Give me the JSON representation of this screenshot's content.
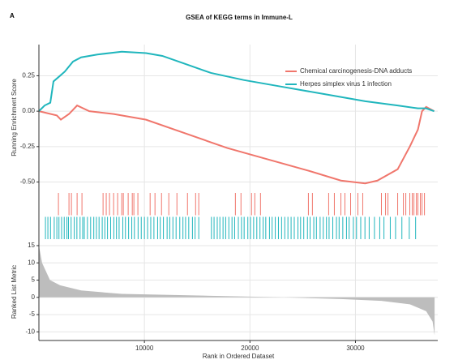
{
  "chart_data": {
    "type": "gsea",
    "panel_label": "A",
    "title": "GSEA of KEGG terms in Immune-L",
    "xlabel": "Rank in Ordered Dataset",
    "ylabel": "Running Enrichment Score",
    "xlim": [
      0,
      37800
    ],
    "xticks": [
      10000,
      20000,
      30000
    ],
    "ylim": [
      -0.56,
      0.47
    ],
    "yticks": [
      {
        "value": -0.5,
        "label": "-0.50"
      },
      -0.25,
      {
        "value": 0,
        "label": "0.00"
      },
      0.25
    ],
    "grid": true,
    "legend": "right",
    "series": [
      {
        "name": "Chemical carcinogenesis-DNA adducts",
        "color": "#f0766c",
        "x": [
          0,
          1700,
          2080,
          2850,
          3620,
          4770,
          7080,
          10150,
          14000,
          17850,
          21690,
          25540,
          28620,
          30920,
          32080,
          34000,
          35150,
          35920,
          36310,
          36700,
          37460
        ],
        "values": [
          0,
          -0.03,
          -0.06,
          -0.02,
          0.04,
          0,
          -0.02,
          -0.06,
          -0.16,
          -0.26,
          -0.34,
          -0.42,
          -0.49,
          -0.51,
          -0.49,
          -0.41,
          -0.25,
          -0.13,
          0,
          0.03,
          0
        ],
        "hits": [
          1850,
          2850,
          3080,
          3620,
          4080,
          6080,
          6380,
          6690,
          7080,
          7460,
          7850,
          8000,
          8460,
          8850,
          9000,
          9380,
          10540,
          11000,
          11620,
          12310,
          13080,
          14080,
          14850,
          15150,
          18620,
          19150,
          20150,
          20460,
          21000,
          25540,
          25920,
          27460,
          28000,
          28620,
          29000,
          29540,
          30230,
          30690,
          32460,
          32850,
          33080,
          34000,
          34540,
          34770,
          35150,
          35380,
          35540,
          35770,
          35920,
          36150,
          36310,
          36540
        ]
      },
      {
        "name": "Herpes simplex virus 1 infection",
        "color": "#20b6bd",
        "x": [
          0,
          540,
          1080,
          1380,
          1850,
          2460,
          3230,
          4000,
          5540,
          7850,
          10150,
          11700,
          14000,
          16300,
          19400,
          23230,
          27080,
          30920,
          34000,
          35920,
          36700,
          37460
        ],
        "values": [
          0,
          0.04,
          0.06,
          0.21,
          0.24,
          0.28,
          0.35,
          0.38,
          0.4,
          0.42,
          0.41,
          0.39,
          0.33,
          0.27,
          0.22,
          0.17,
          0.12,
          0.07,
          0.04,
          0.02,
          0.02,
          0
        ],
        "hits": [
          620,
          850,
          1100,
          1450,
          1700,
          1900,
          2150,
          2400,
          2650,
          2800,
          3050,
          3350,
          3600,
          3900,
          4150,
          4300,
          4600,
          4900,
          5200,
          5450,
          5700,
          6000,
          6250,
          6500,
          6800,
          7100,
          7350,
          7600,
          7950,
          8200,
          8500,
          8800,
          9050,
          9400,
          9700,
          10000,
          10300,
          10600,
          10900,
          11250,
          11500,
          11800,
          12150,
          12400,
          12700,
          13000,
          13350,
          13650,
          13900,
          14200,
          14550,
          14800,
          15150,
          16350,
          16600,
          16900,
          17150,
          17450,
          17700,
          18000,
          18300,
          18550,
          18900,
          19200,
          19450,
          19800,
          20050,
          20350,
          20650,
          20950,
          21250,
          21500,
          21850,
          22100,
          22400,
          22700,
          23000,
          23300,
          23600,
          23900,
          24200,
          24550,
          24800,
          25100,
          25450,
          25700,
          26050,
          26300,
          26650,
          26950,
          27250,
          27500,
          27850,
          28200,
          28450,
          28800,
          29150,
          29400,
          29800,
          30100,
          30500,
          30900,
          31300,
          31800,
          32300,
          32700,
          33300,
          33800,
          34400,
          35100,
          35700
        ]
      }
    ],
    "metric": {
      "ylabel": "Ranked List Metric",
      "color": "#bdbdbd",
      "ylim": [
        -12.5,
        15.7
      ],
      "yticks": [
        -10,
        -5,
        0,
        5,
        10,
        15
      ],
      "x": [
        0,
        300,
        1050,
        2000,
        4000,
        7850,
        15540,
        23230,
        28620,
        32460,
        35150,
        36700,
        37310,
        37500
      ],
      "values": [
        15,
        10,
        5,
        3.5,
        2,
        1,
        0.5,
        0,
        -0.5,
        -1,
        -2,
        -4,
        -7,
        -11
      ]
    }
  }
}
